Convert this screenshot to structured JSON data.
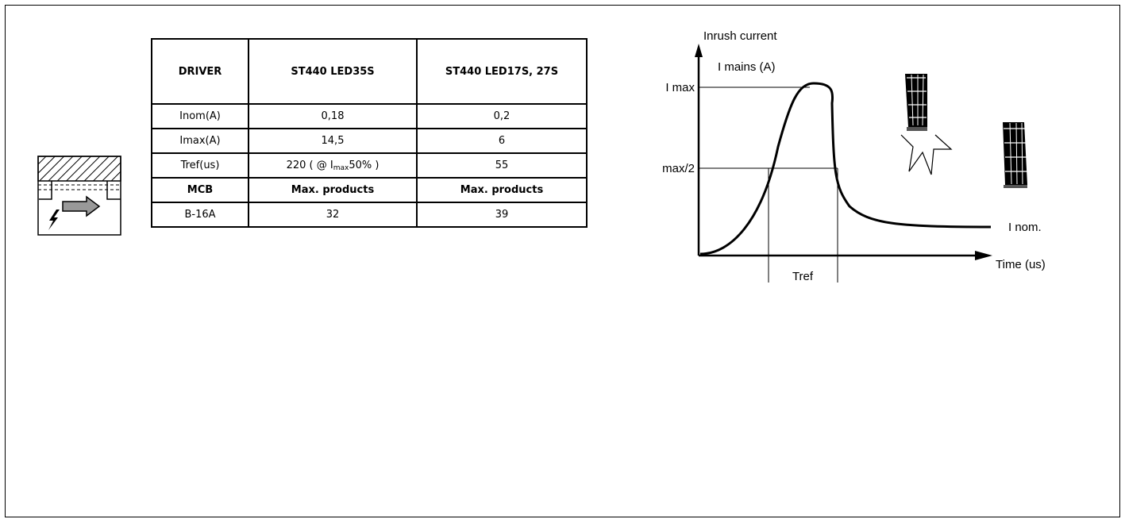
{
  "table": {
    "headers": [
      "DRIVER",
      "ST440 LED35S",
      "ST440 LED17S, 27S"
    ],
    "rows": [
      [
        "Inom(A)",
        "0,18",
        "0,2"
      ],
      [
        "Imax(A)",
        "14,5",
        "6"
      ],
      {
        "label": "Tref(us)",
        "c2_prefix": "220 ( @ I",
        "c2_sub": "max",
        "c2_suffix": "50% )",
        "c3": "55"
      }
    ],
    "mcb_header": [
      "MCB",
      "Max. products",
      "Max. products"
    ],
    "mcb_rows": [
      [
        "B-16A",
        "32",
        "39"
      ]
    ]
  },
  "chart": {
    "y_title": "Inrush current",
    "y_subtitle": "I mains (A)",
    "imax_label": "I max",
    "half_label": "max/2",
    "inom_label": "I nom.",
    "x_title": "Time (us)",
    "tref_label": "Tref"
  },
  "icons": [
    "mcb-icon",
    "lamp-inrush-icon",
    "lamp-icon"
  ]
}
